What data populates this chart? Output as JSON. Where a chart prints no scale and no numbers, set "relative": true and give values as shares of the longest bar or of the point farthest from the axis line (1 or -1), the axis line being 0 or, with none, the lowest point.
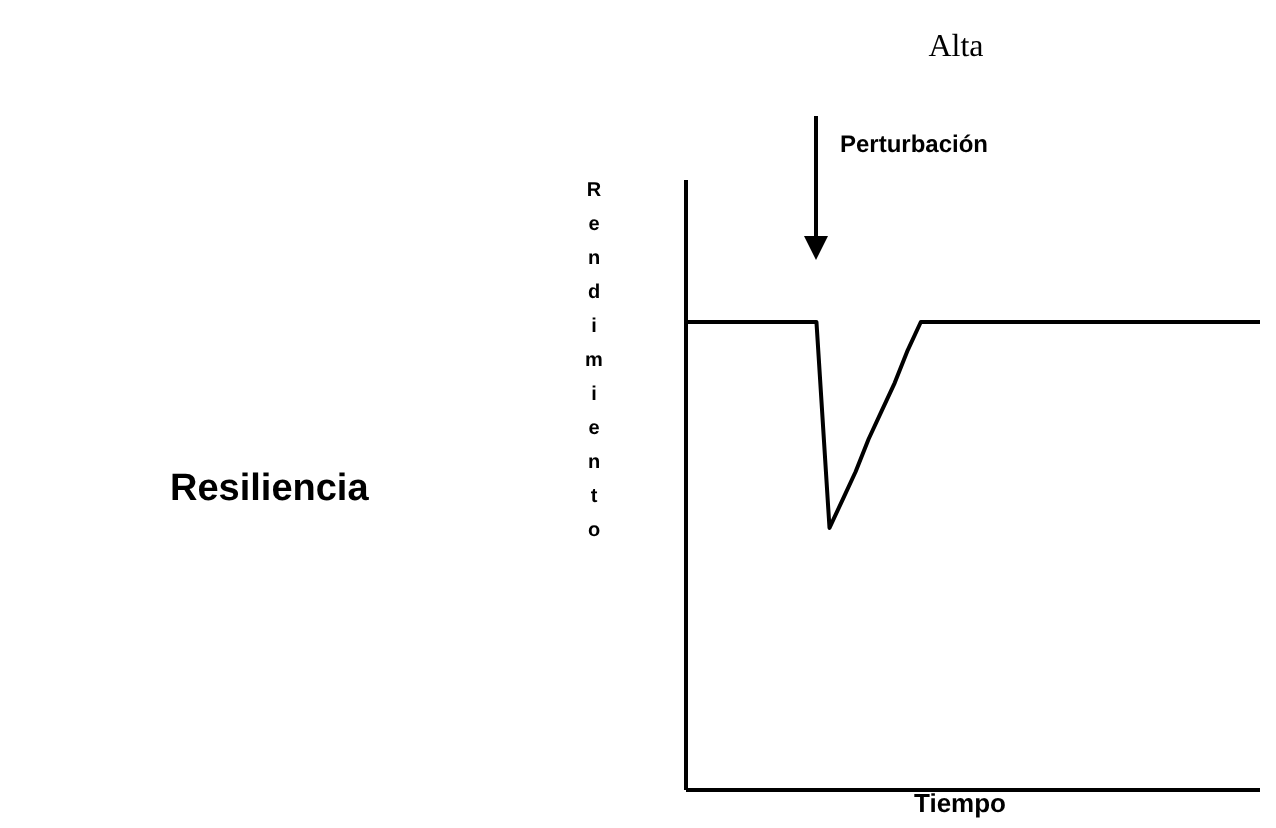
{
  "chart_data": {
    "type": "line",
    "relative": true,
    "title": "Alta",
    "subtitle": "Resiliencia",
    "xlabel": "Tiempo",
    "ylabel": "Rendimiento",
    "annotations": [
      "Perturbación"
    ],
    "categories": [
      null,
      null,
      null,
      null,
      null,
      null,
      null,
      null,
      null,
      null,
      null,
      null,
      null,
      null,
      null,
      null,
      null,
      null,
      null,
      null,
      null,
      null,
      null,
      null,
      null,
      null,
      null,
      null,
      null,
      null,
      null,
      null,
      null,
      null,
      null,
      null,
      null,
      null,
      null,
      null,
      null,
      null,
      null,
      null,
      null
    ],
    "series": [
      {
        "color": "#000000",
        "values": [
          1,
          1,
          1,
          1,
          1,
          1,
          1,
          1,
          1,
          1,
          1,
          0.56,
          0.62,
          0.68,
          0.75,
          0.81,
          0.87,
          0.94,
          1,
          1,
          1,
          1,
          1,
          1,
          1,
          1,
          1,
          1,
          1,
          1,
          1,
          1,
          1,
          1,
          1,
          1,
          1,
          1,
          1,
          1,
          1,
          1,
          1,
          1,
          1
        ]
      }
    ],
    "marker": "none",
    "line_style": "solid"
  }
}
